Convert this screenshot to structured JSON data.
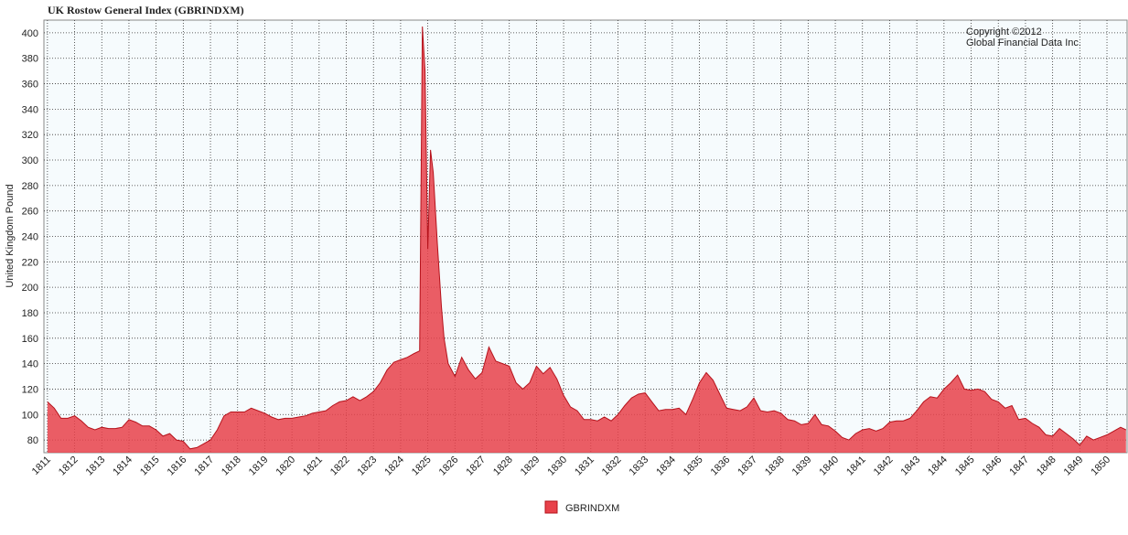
{
  "chart_data": {
    "type": "area",
    "title": "UK Rostow General Index (GBRINDXM)",
    "ylabel": "United Kingdom Pound",
    "annotations": [
      "Copyright ©2012",
      "Global Financial Data Inc."
    ],
    "x": [
      1811,
      1811.25,
      1811.5,
      1811.75,
      1812,
      1812.25,
      1812.5,
      1812.75,
      1813,
      1813.25,
      1813.5,
      1813.75,
      1814,
      1814.25,
      1814.5,
      1814.75,
      1815,
      1815.25,
      1815.5,
      1815.75,
      1816,
      1816.25,
      1816.5,
      1816.75,
      1817,
      1817.25,
      1817.5,
      1817.75,
      1818,
      1818.25,
      1818.5,
      1818.75,
      1819,
      1819.25,
      1819.5,
      1819.75,
      1820,
      1820.25,
      1820.5,
      1820.75,
      1821,
      1821.25,
      1821.5,
      1821.75,
      1822,
      1822.25,
      1822.5,
      1822.75,
      1823,
      1823.25,
      1823.5,
      1823.75,
      1824,
      1824.25,
      1824.5,
      1824.7,
      1824.8,
      1824.9,
      1825,
      1825.1,
      1825.2,
      1825.35,
      1825.5,
      1825.6,
      1825.75,
      1826,
      1826.25,
      1826.5,
      1826.75,
      1827,
      1827.25,
      1827.5,
      1827.75,
      1828,
      1828.25,
      1828.5,
      1828.75,
      1829,
      1829.25,
      1829.5,
      1829.75,
      1830,
      1830.25,
      1830.5,
      1830.75,
      1831,
      1831.25,
      1831.5,
      1831.75,
      1832,
      1832.25,
      1832.5,
      1832.75,
      1833,
      1833.25,
      1833.5,
      1833.75,
      1834,
      1834.25,
      1834.5,
      1834.75,
      1835,
      1835.25,
      1835.5,
      1835.75,
      1836,
      1836.25,
      1836.5,
      1836.75,
      1837,
      1837.25,
      1837.5,
      1837.75,
      1838,
      1838.25,
      1838.5,
      1838.75,
      1839,
      1839.25,
      1839.5,
      1839.75,
      1840,
      1840.25,
      1840.5,
      1840.75,
      1841,
      1841.25,
      1841.5,
      1841.75,
      1842,
      1842.25,
      1842.5,
      1842.75,
      1843,
      1843.25,
      1843.5,
      1843.75,
      1844,
      1844.25,
      1844.5,
      1844.75,
      1845,
      1845.25,
      1845.5,
      1845.75,
      1846,
      1846.25,
      1846.5,
      1846.75,
      1847,
      1847.25,
      1847.5,
      1847.75,
      1848,
      1848.25,
      1848.5,
      1848.75,
      1849,
      1849.25,
      1849.5,
      1849.75,
      1850,
      1850.25,
      1850.5,
      1850.7
    ],
    "series": [
      {
        "name": "GBRINDXM",
        "color": "#e8414a",
        "line_color": "#b5121b",
        "values": [
          110,
          105,
          97,
          97,
          99,
          95,
          90,
          88,
          90,
          89,
          89,
          90,
          96,
          94,
          91,
          91,
          88,
          83,
          85,
          80,
          79,
          73,
          74,
          77,
          80,
          88,
          99,
          102,
          102,
          102,
          105,
          103,
          101,
          98,
          96,
          97,
          97,
          98,
          99,
          101,
          102,
          103,
          107,
          110,
          111,
          114,
          111,
          114,
          118,
          125,
          135,
          141,
          143,
          145,
          148,
          150,
          405,
          370,
          230,
          308,
          290,
          235,
          185,
          160,
          140,
          130,
          145,
          135,
          128,
          133,
          153,
          142,
          140,
          138,
          125,
          120,
          125,
          138,
          132,
          137,
          128,
          115,
          106,
          103,
          96,
          96,
          95,
          98,
          95,
          100,
          107,
          113,
          116,
          117,
          110,
          103,
          104,
          104,
          105,
          100,
          112,
          125,
          133,
          127,
          116,
          105,
          104,
          103,
          106,
          113,
          103,
          102,
          103,
          101,
          96,
          95,
          92,
          93,
          100,
          92,
          91,
          87,
          82,
          80,
          85,
          88,
          89,
          87,
          89,
          94,
          95,
          95,
          97,
          103,
          110,
          114,
          113,
          120,
          125,
          131,
          120,
          119,
          120,
          118,
          112,
          110,
          105,
          107,
          96,
          97,
          93,
          90,
          84,
          83,
          89,
          85,
          81,
          76,
          83,
          80,
          82,
          84,
          87,
          90,
          88
        ]
      }
    ],
    "xlim": [
      1810.87,
      1850.74
    ],
    "xticks": [
      1811,
      1812,
      1813,
      1814,
      1815,
      1816,
      1817,
      1818,
      1819,
      1820,
      1821,
      1822,
      1823,
      1824,
      1825,
      1826,
      1827,
      1828,
      1829,
      1830,
      1831,
      1832,
      1833,
      1834,
      1835,
      1836,
      1837,
      1838,
      1839,
      1840,
      1841,
      1842,
      1843,
      1844,
      1845,
      1846,
      1847,
      1848,
      1849,
      1850
    ],
    "ylim": [
      70,
      410
    ],
    "yticks": [
      80,
      100,
      120,
      140,
      160,
      180,
      200,
      220,
      240,
      260,
      280,
      300,
      320,
      340,
      360,
      380,
      400
    ],
    "grid": true,
    "legend": "bottom"
  }
}
